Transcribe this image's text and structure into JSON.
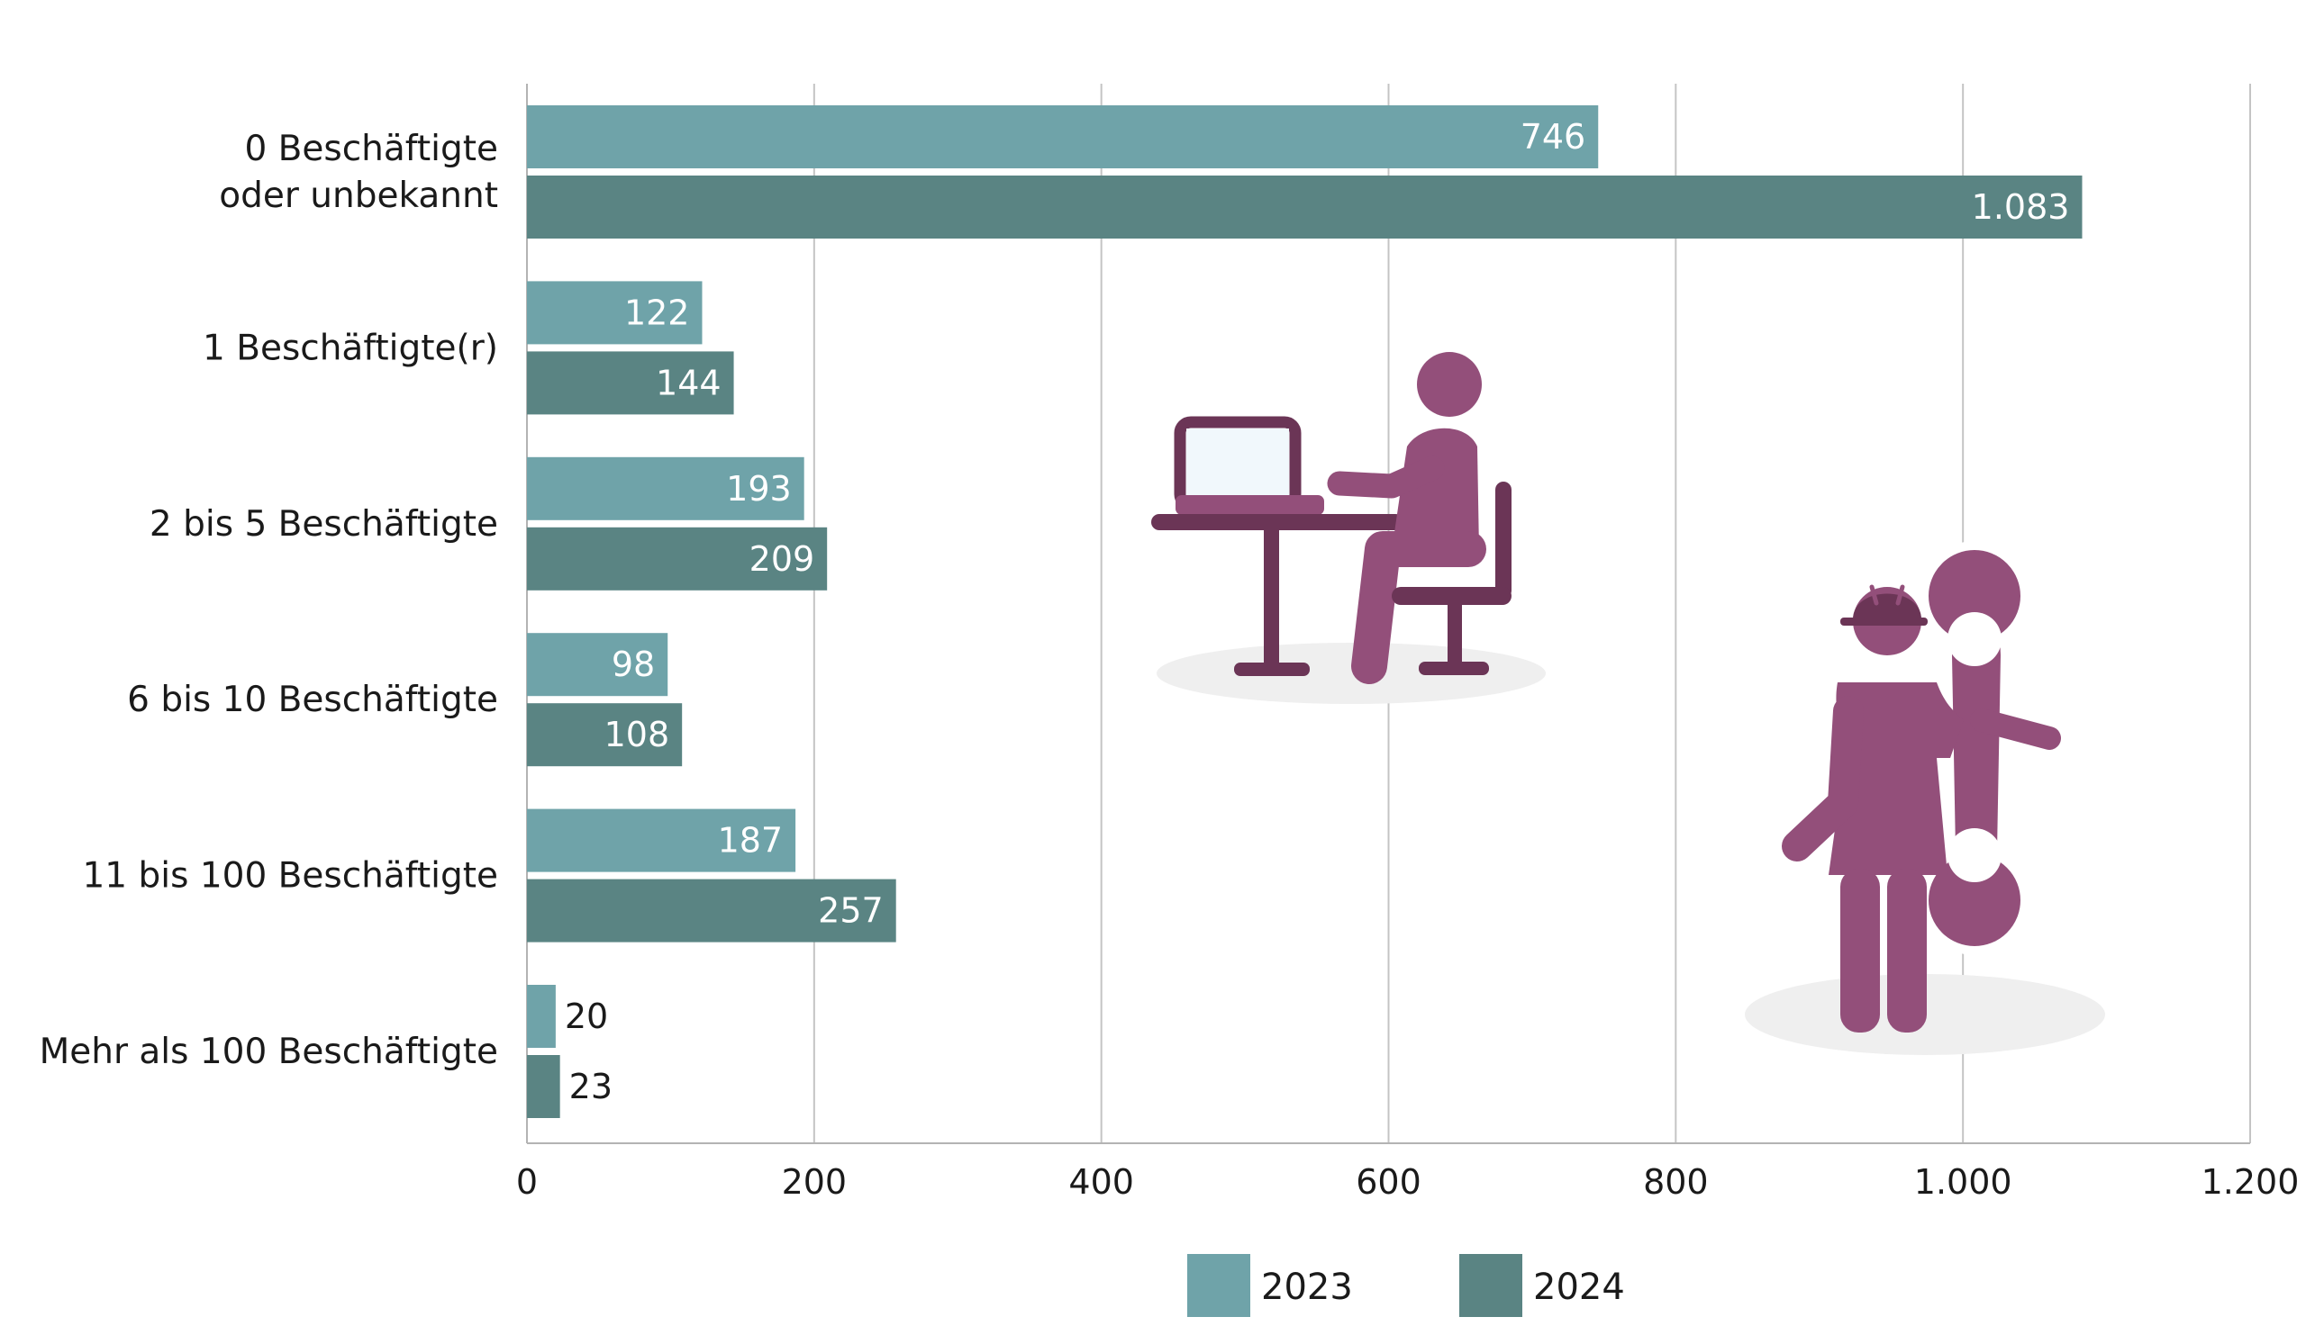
{
  "chart_data": {
    "type": "bar",
    "orientation": "horizontal",
    "title": "",
    "xlabel": "",
    "ylabel": "",
    "categories": [
      [
        "0 Beschäftigte",
        "oder unbekannt"
      ],
      [
        "1 Beschäftigte(r)"
      ],
      [
        "2 bis 5 Beschäftigte"
      ],
      [
        "6 bis 10 Beschäftigte"
      ],
      [
        "11 bis 100 Beschäftigte"
      ],
      [
        "Mehr als 100 Beschäftigte"
      ]
    ],
    "series": [
      {
        "name": "2023",
        "color": "#6fa3a9",
        "values": [
          746,
          122,
          193,
          98,
          187,
          20
        ],
        "value_labels": [
          "746",
          "122",
          "193",
          "98",
          "187",
          "20"
        ]
      },
      {
        "name": "2024",
        "color": "#5a8483",
        "values": [
          1083,
          144,
          209,
          108,
          257,
          23
        ],
        "value_labels": [
          "1.083",
          "144",
          "209",
          "108",
          "257",
          "23"
        ]
      }
    ],
    "xlim": [
      0,
      1200
    ],
    "x_ticks": [
      0,
      200,
      400,
      600,
      800,
      1000,
      1200
    ],
    "x_tick_labels": [
      "0",
      "200",
      "400",
      "600",
      "800",
      "1.000",
      "1.200"
    ],
    "grid": true,
    "legend_position": "bottom-center"
  },
  "illustrations": {
    "office_worker": "person-at-desk-icon",
    "craftswoman": "worker-with-wrench-icon",
    "figure_color": "#934f7a",
    "furniture_color": "#6b3556"
  }
}
